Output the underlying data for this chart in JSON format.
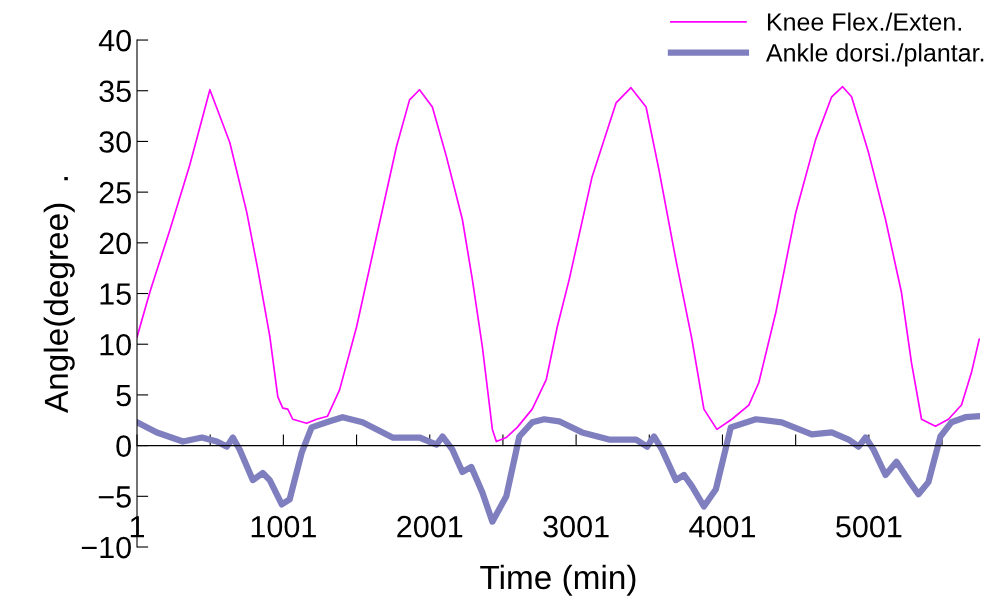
{
  "chart_data": {
    "type": "line",
    "xlabel": "Time (min)",
    "ylabel": "Angle(degree)  .",
    "xlim": [
      1,
      5760
    ],
    "ylim": [
      -10,
      40
    ],
    "xticks": [
      1,
      {
        "value": 501,
        "label": null
      },
      1001,
      {
        "value": 1501,
        "label": null
      },
      2001,
      {
        "value": 2501,
        "label": null
      },
      3001,
      {
        "value": 3501,
        "label": null
      },
      4001,
      {
        "value": 4501,
        "label": null
      },
      5001,
      {
        "value": 5501,
        "label": null
      }
    ],
    "yticks": [
      {
        "value": -10,
        "label": "−10"
      },
      {
        "value": -5,
        "label": "−5"
      },
      0,
      5,
      10,
      15,
      20,
      25,
      30,
      35,
      40
    ],
    "grid": false,
    "legend": "top right",
    "marker": "none",
    "line_style": "solid",
    "series": [
      {
        "name": "Knee Flex./Exten.",
        "color": "#ff00ff",
        "x": [
          1,
          90,
          226,
          362,
          499,
          635,
          751,
          826,
          908,
          963,
          997,
          1031,
          1065,
          1160,
          1228,
          1303,
          1385,
          1501,
          1637,
          1774,
          1863,
          1931,
          2019,
          2115,
          2224,
          2292,
          2360,
          2429,
          2456,
          2524,
          2599,
          2701,
          2797,
          2872,
          2954,
          3110,
          3274,
          3376,
          3479,
          3567,
          3683,
          3792,
          3874,
          3963,
          4065,
          4181,
          4249,
          4365,
          4502,
          4638,
          4747,
          4822,
          4883,
          4999,
          5115,
          5224,
          5292,
          5361,
          5456,
          5545,
          5634,
          5702,
          5755
        ],
        "values": [
          10.7,
          15.2,
          21.3,
          27.7,
          35.1,
          29.9,
          23.0,
          17.4,
          10.8,
          4.8,
          3.7,
          3.6,
          2.6,
          2.2,
          2.6,
          2.9,
          5.5,
          11.7,
          20.6,
          29.5,
          34.1,
          35.1,
          33.4,
          28.5,
          22.3,
          16.4,
          9.8,
          1.6,
          0.4,
          0.8,
          1.8,
          3.6,
          6.5,
          11.7,
          16.4,
          26.5,
          33.8,
          35.3,
          33.4,
          27.2,
          18.3,
          10.5,
          3.6,
          1.6,
          2.6,
          4.0,
          6.2,
          13.1,
          23.0,
          30.2,
          34.4,
          35.4,
          34.4,
          28.9,
          22.3,
          15.1,
          8.2,
          2.6,
          1.9,
          2.6,
          4.0,
          7.2,
          10.5
        ]
      },
      {
        "name": "Ankle dorsi./plantar.",
        "color": "#7f7fbf",
        "x": [
          1,
          137,
          315,
          444,
          547,
          615,
          656,
          703,
          792,
          860,
          908,
          990,
          1044,
          1126,
          1194,
          1317,
          1406,
          1542,
          1747,
          1931,
          2047,
          2088,
          2156,
          2224,
          2285,
          2360,
          2429,
          2524,
          2613,
          2701,
          2783,
          2885,
          3042,
          3226,
          3411,
          3486,
          3533,
          3588,
          3683,
          3738,
          3792,
          3874,
          3956,
          4058,
          4229,
          4406,
          4611,
          4747,
          4863,
          4931,
          4979,
          5033,
          5115,
          5190,
          5272,
          5340,
          5408,
          5490,
          5565,
          5661,
          5755
        ],
        "values": [
          2.3,
          1.3,
          0.4,
          0.8,
          0.4,
          -0.1,
          0.8,
          -0.4,
          -3.4,
          -2.7,
          -3.4,
          -5.8,
          -5.3,
          -0.7,
          1.8,
          2.4,
          2.8,
          2.3,
          0.8,
          0.8,
          0.1,
          0.9,
          -0.4,
          -2.6,
          -2.1,
          -4.6,
          -7.5,
          -5.0,
          0.9,
          2.3,
          2.6,
          2.4,
          1.3,
          0.6,
          0.6,
          -0.1,
          0.9,
          -0.4,
          -3.4,
          -2.9,
          -4.0,
          -6.0,
          -4.3,
          1.8,
          2.6,
          2.3,
          1.1,
          1.3,
          0.6,
          -0.1,
          0.8,
          -0.4,
          -2.9,
          -1.6,
          -3.4,
          -4.8,
          -3.6,
          0.9,
          2.3,
          2.8,
          2.9
        ]
      }
    ]
  }
}
